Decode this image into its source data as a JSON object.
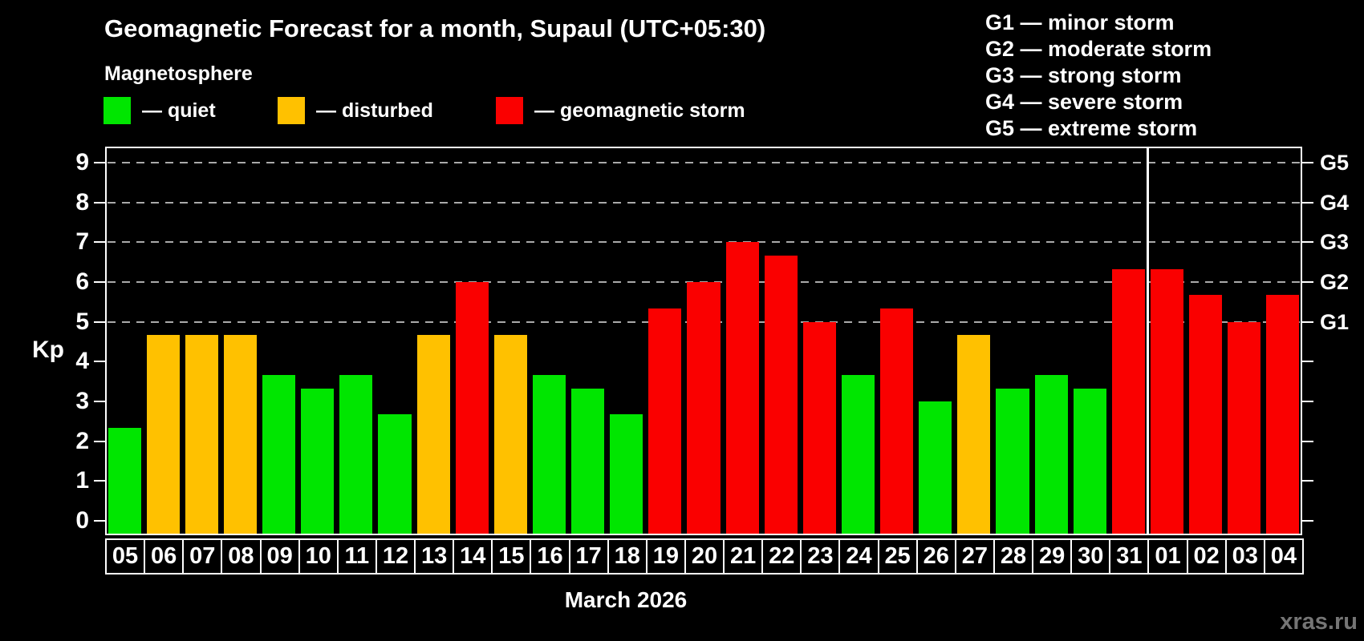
{
  "title": "Geomagnetic Forecast for a month, Supaul (UTC+05:30)",
  "subtitle": "Magnetosphere",
  "legend": {
    "items": [
      {
        "label": "— quiet",
        "status": "quiet"
      },
      {
        "label": "— disturbed",
        "status": "disturbed"
      },
      {
        "label": "— geomagnetic storm",
        "status": "storm"
      }
    ]
  },
  "g_legend": {
    "items": [
      "G1 — minor storm",
      "G2 — moderate storm",
      "G3 — strong storm",
      "G4 — severe storm",
      "G5 — extreme storm"
    ]
  },
  "watermark": "xras.ru",
  "colors": {
    "quiet": "#00e600",
    "disturbed": "#ffc100",
    "storm": "#fa0000",
    "axis": "#ffffff",
    "grid": "#aaaaaa",
    "background": "#000000",
    "watermark": "#757575"
  },
  "chart_data": {
    "type": "bar",
    "title": "Geomagnetic Forecast for a month, Supaul (UTC+05:30)",
    "xlabel": "March 2026",
    "ylabel": "Kp",
    "ylim": [
      0,
      9.5
    ],
    "grid": "dashed horizontal at storm levels only",
    "legend_position": "top-left and top-right",
    "yticks": [
      0,
      1,
      2,
      3,
      4,
      5,
      6,
      7,
      8,
      9
    ],
    "gridlines_at": [
      5,
      6,
      7,
      8,
      9
    ],
    "right_axis_labels": [
      {
        "value": 5,
        "label": "G1"
      },
      {
        "value": 6,
        "label": "G2"
      },
      {
        "value": 7,
        "label": "G3"
      },
      {
        "value": 8,
        "label": "G4"
      },
      {
        "value": 9,
        "label": "G5"
      }
    ],
    "categories": [
      "05",
      "06",
      "07",
      "08",
      "09",
      "10",
      "11",
      "12",
      "13",
      "14",
      "15",
      "16",
      "17",
      "18",
      "19",
      "20",
      "21",
      "22",
      "23",
      "24",
      "25",
      "26",
      "27",
      "28",
      "29",
      "30",
      "31",
      "01",
      "02",
      "03",
      "04"
    ],
    "values": [
      2.33,
      4.67,
      4.67,
      4.67,
      3.67,
      3.33,
      3.67,
      2.67,
      4.67,
      6,
      4.67,
      3.67,
      3.33,
      2.67,
      5.33,
      6,
      7,
      6.67,
      5,
      3.67,
      5.33,
      3,
      4.67,
      3.33,
      3.67,
      3.33,
      6.33,
      6.33,
      5.67,
      5,
      5.67
    ],
    "statuses": [
      "quiet",
      "disturbed",
      "disturbed",
      "disturbed",
      "quiet",
      "quiet",
      "quiet",
      "quiet",
      "disturbed",
      "storm",
      "disturbed",
      "quiet",
      "quiet",
      "quiet",
      "storm",
      "storm",
      "storm",
      "storm",
      "storm",
      "quiet",
      "storm",
      "quiet",
      "disturbed",
      "quiet",
      "quiet",
      "quiet",
      "storm",
      "storm",
      "storm",
      "storm",
      "storm"
    ],
    "month_separator_after_index": 26
  }
}
